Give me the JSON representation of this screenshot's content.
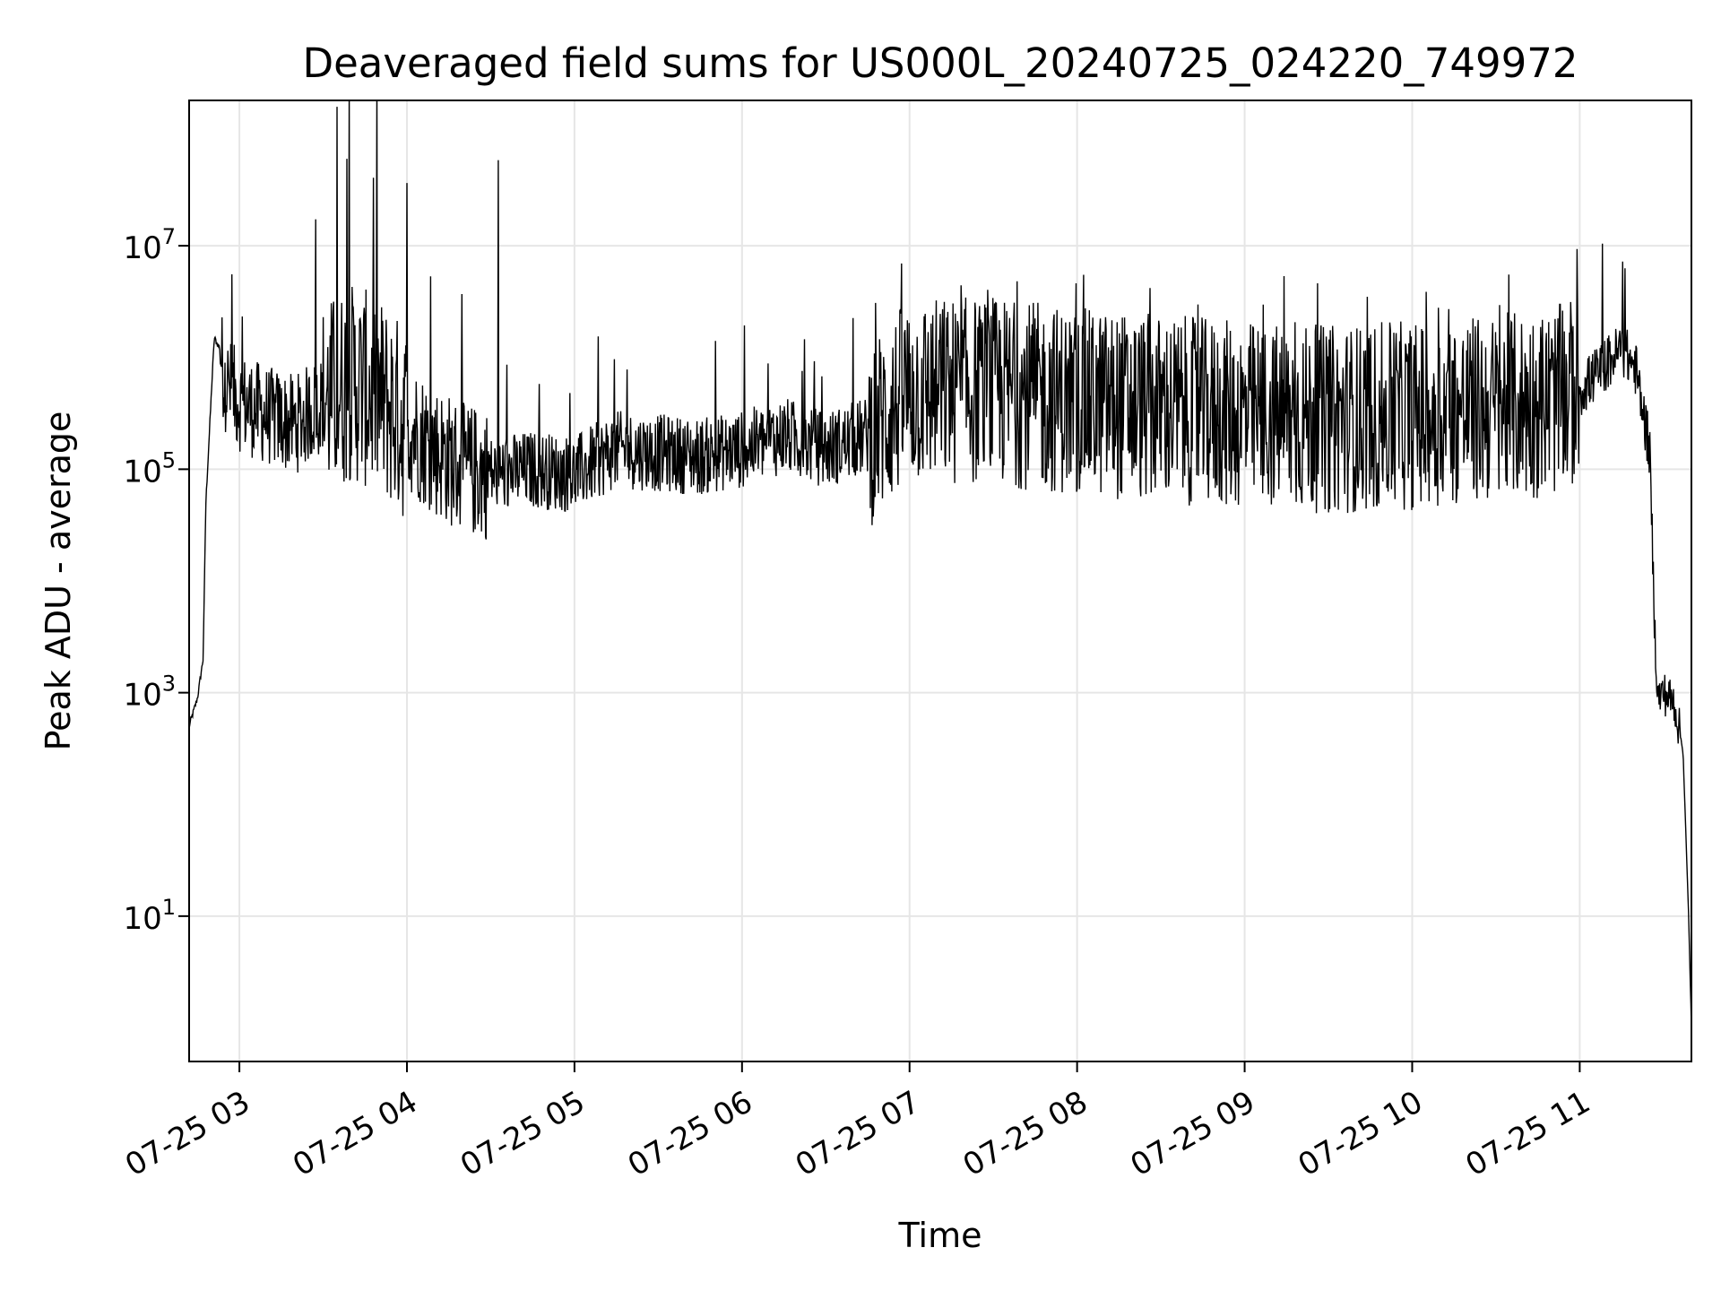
{
  "chart_data": {
    "type": "line",
    "title": "Deaveraged field sums for US000L_20240725_024220_749972",
    "xlabel": "Time",
    "ylabel": "Peak ADU - average",
    "yscale": "log",
    "ylim": [
      0.5,
      200000000
    ],
    "xlim": [
      "07-25 02:42",
      "07-25 11:40"
    ],
    "grid": true,
    "line_color": "#000000",
    "grid_color": "#e6e6e6",
    "x_ticks": [
      "07-25 03",
      "07-25 04",
      "07-25 05",
      "07-25 06",
      "07-25 07",
      "07-25 08",
      "07-25 09",
      "07-25 10",
      "07-25 11"
    ],
    "y_ticks": [
      {
        "base": "10",
        "exp": "1",
        "value": 10
      },
      {
        "base": "10",
        "exp": "3",
        "value": 1000
      },
      {
        "base": "10",
        "exp": "5",
        "value": 100000
      },
      {
        "base": "10",
        "exp": "7",
        "value": 10000000
      }
    ],
    "series": [
      {
        "x": [
          "07-25 02:42",
          "07-25 02:45",
          "07-25 02:47",
          "07-25 02:48",
          "07-25 02:50",
          "07-25 02:51",
          "07-25 02:53",
          "07-25 02:55",
          "07-25 03:00",
          "07-25 03:10",
          "07-25 03:20",
          "07-25 03:30",
          "07-25 03:40",
          "07-25 03:50",
          "07-25 04:00",
          "07-25 04:10",
          "07-25 04:20",
          "07-25 04:30",
          "07-25 04:45",
          "07-25 05:00",
          "07-25 05:15",
          "07-25 05:30",
          "07-25 05:45",
          "07-25 06:00",
          "07-25 06:15",
          "07-25 06:30",
          "07-25 06:45",
          "07-25 07:00",
          "07-25 07:30",
          "07-25 08:00",
          "07-25 08:30",
          "07-25 09:00",
          "07-25 09:30",
          "07-25 10:00",
          "07-25 10:30",
          "07-25 10:50",
          "07-25 11:00",
          "07-25 11:10",
          "07-25 11:15",
          "07-25 11:20",
          "07-25 11:25",
          "07-25 11:27",
          "07-25 11:28",
          "07-25 11:30",
          "07-25 11:34",
          "07-25 11:37",
          "07-25 11:39",
          "07-25 11:40"
        ],
        "y": [
          500,
          900,
          2000,
          50000,
          500000,
          1500000,
          1200000,
          600000,
          400000,
          300000,
          250000,
          400000,
          600000,
          450000,
          250000,
          150000,
          100000,
          90000,
          100000,
          90000,
          150000,
          140000,
          130000,
          150000,
          200000,
          150000,
          200000,
          500000,
          500000,
          400000,
          350000,
          300000,
          280000,
          300000,
          350000,
          400000,
          500000,
          900000,
          1200000,
          800000,
          150000,
          3000,
          900,
          1000,
          800,
          300,
          10,
          1
        ]
      }
    ]
  }
}
